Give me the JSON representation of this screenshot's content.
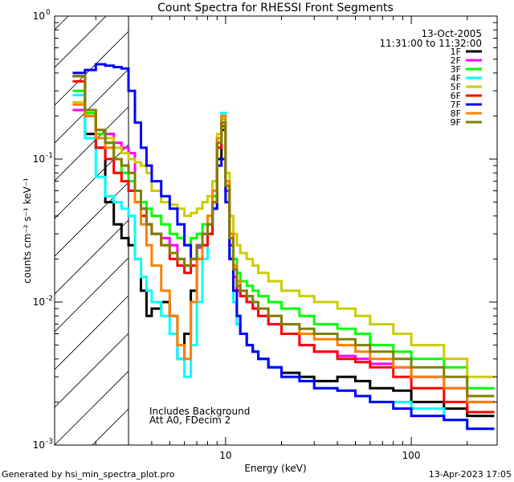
{
  "chart_data": {
    "type": "line",
    "step": true,
    "title": "Count Spectra for RHESSI Front Segments",
    "xlabel": "Energy (keV)",
    "ylabel": "counts cm⁻² s⁻¹ keV⁻¹",
    "xscale": "log",
    "yscale": "log",
    "xlim": [
      1.2,
      290
    ],
    "ylim": [
      0.001,
      1
    ],
    "x_ticks": [
      {
        "v": 10,
        "label": "10"
      },
      {
        "v": 100,
        "label": "100"
      }
    ],
    "y_ticks": [
      {
        "v": 1,
        "base": "10",
        "exp": "0"
      },
      {
        "v": 0.1,
        "base": "10",
        "exp": "-1"
      },
      {
        "v": 0.01,
        "base": "10",
        "exp": "-2"
      },
      {
        "v": 0.001,
        "base": "10",
        "exp": "-3"
      }
    ],
    "date": "13-Oct-2005",
    "time_range": "11:31:00 to 11:32:00",
    "attenuator_boundary_kev": 3.0,
    "annotations": [
      "Includes Background",
      "Att A0, FDecim 2"
    ],
    "energy_edges_kev": [
      1.5,
      1.75,
      2.0,
      2.25,
      2.5,
      2.75,
      3.0,
      3.25,
      3.5,
      3.75,
      4.0,
      4.5,
      5.0,
      5.5,
      6.0,
      6.5,
      7.0,
      7.5,
      8.0,
      8.5,
      9.0,
      9.5,
      10.0,
      10.5,
      11.0,
      11.5,
      12.0,
      13.0,
      14.0,
      15.0,
      17.0,
      20.0,
      25.0,
      30.0,
      40.0,
      50.0,
      60.0,
      80.0,
      100.0,
      150.0,
      200.0,
      280.0
    ],
    "series": [
      {
        "name": "1F",
        "color": "#000000",
        "values": [
          0.38,
          0.15,
          0.12,
          0.05,
          0.035,
          0.028,
          0.025,
          0.02,
          0.012,
          0.008,
          0.009,
          0.01,
          0.008,
          0.004,
          0.006,
          0.012,
          0.02,
          0.025,
          0.03,
          0.045,
          0.1,
          0.16,
          0.05,
          0.02,
          0.01,
          0.007,
          0.006,
          0.005,
          0.0045,
          0.004,
          0.0035,
          0.0032,
          0.003,
          0.0028,
          0.003,
          0.0028,
          0.0025,
          0.0024,
          0.002,
          0.0018,
          0.0016
        ]
      },
      {
        "name": "2F",
        "color": "#ff00ff",
        "values": [
          0.22,
          0.2,
          0.16,
          0.15,
          0.13,
          0.12,
          0.11,
          0.06,
          0.045,
          0.035,
          0.03,
          0.028,
          0.025,
          0.02,
          0.018,
          0.02,
          0.024,
          0.03,
          0.035,
          0.05,
          0.12,
          0.2,
          0.06,
          0.025,
          0.015,
          0.012,
          0.011,
          0.01,
          0.009,
          0.008,
          0.007,
          0.006,
          0.005,
          0.0045,
          0.0042,
          0.004,
          0.0037,
          0.0035,
          0.003,
          0.0025,
          0.002
        ]
      },
      {
        "name": "3F",
        "color": "#00ff00",
        "values": [
          0.3,
          0.21,
          0.15,
          0.13,
          0.1,
          0.08,
          0.07,
          0.06,
          0.05,
          0.045,
          0.04,
          0.035,
          0.03,
          0.028,
          0.025,
          0.028,
          0.03,
          0.035,
          0.04,
          0.055,
          0.13,
          0.19,
          0.07,
          0.03,
          0.02,
          0.016,
          0.014,
          0.013,
          0.012,
          0.011,
          0.01,
          0.009,
          0.008,
          0.007,
          0.0065,
          0.006,
          0.005,
          0.0045,
          0.004,
          0.0035,
          0.0025
        ]
      },
      {
        "name": "4F",
        "color": "#00ffff",
        "values": [
          0.28,
          0.14,
          0.075,
          0.055,
          0.05,
          0.045,
          0.04,
          0.02,
          0.015,
          0.012,
          0.01,
          0.008,
          0.006,
          0.004,
          0.003,
          0.005,
          0.01,
          0.02,
          0.03,
          0.045,
          0.12,
          0.21,
          0.06,
          0.02,
          0.01,
          0.007,
          0.006,
          0.005,
          0.0045,
          0.004,
          0.0035,
          0.003,
          0.0028,
          0.0025,
          0.0024,
          0.0022,
          0.002,
          0.002,
          0.0018,
          0.0015,
          0.0013
        ]
      },
      {
        "name": "5F",
        "color": "#cccc00",
        "values": [
          0.25,
          0.2,
          0.16,
          0.14,
          0.12,
          0.11,
          0.1,
          0.095,
          0.09,
          0.08,
          0.06,
          0.05,
          0.048,
          0.045,
          0.04,
          0.042,
          0.045,
          0.05,
          0.055,
          0.07,
          0.15,
          0.18,
          0.08,
          0.04,
          0.03,
          0.025,
          0.022,
          0.02,
          0.018,
          0.016,
          0.014,
          0.012,
          0.011,
          0.01,
          0.009,
          0.008,
          0.007,
          0.006,
          0.005,
          0.004,
          0.003
        ]
      },
      {
        "name": "6F",
        "color": "#ff0000",
        "values": [
          0.35,
          0.2,
          0.12,
          0.1,
          0.08,
          0.07,
          0.06,
          0.05,
          0.04,
          0.035,
          0.03,
          0.025,
          0.02,
          0.018,
          0.016,
          0.018,
          0.02,
          0.025,
          0.03,
          0.05,
          0.12,
          0.17,
          0.06,
          0.025,
          0.015,
          0.012,
          0.011,
          0.01,
          0.009,
          0.008,
          0.007,
          0.006,
          0.005,
          0.0045,
          0.004,
          0.0038,
          0.0035,
          0.003,
          0.0025,
          0.002,
          0.0017
        ]
      },
      {
        "name": "7F",
        "color": "#0000ff",
        "values": [
          0.4,
          0.42,
          0.46,
          0.45,
          0.44,
          0.43,
          0.3,
          0.18,
          0.12,
          0.09,
          0.07,
          0.055,
          0.045,
          0.035,
          0.025,
          0.02,
          0.025,
          0.03,
          0.035,
          0.045,
          0.09,
          0.1,
          0.05,
          0.02,
          0.012,
          0.008,
          0.006,
          0.005,
          0.0045,
          0.004,
          0.0035,
          0.003,
          0.0028,
          0.0025,
          0.0024,
          0.0022,
          0.002,
          0.0018,
          0.0016,
          0.0015,
          0.0013
        ]
      },
      {
        "name": "8F",
        "color": "#ff8000",
        "values": [
          0.24,
          0.2,
          0.14,
          0.12,
          0.1,
          0.09,
          0.08,
          0.05,
          0.035,
          0.025,
          0.018,
          0.012,
          0.008,
          0.005,
          0.004,
          0.01,
          0.02,
          0.03,
          0.04,
          0.06,
          0.14,
          0.2,
          0.07,
          0.03,
          0.018,
          0.014,
          0.012,
          0.011,
          0.01,
          0.009,
          0.008,
          0.007,
          0.006,
          0.0055,
          0.005,
          0.0045,
          0.004,
          0.0035,
          0.003,
          0.0025,
          0.002
        ]
      },
      {
        "name": "9F",
        "color": "#808000",
        "values": [
          0.38,
          0.22,
          0.16,
          0.13,
          0.1,
          0.09,
          0.08,
          0.06,
          0.045,
          0.035,
          0.03,
          0.025,
          0.022,
          0.02,
          0.018,
          0.02,
          0.025,
          0.03,
          0.035,
          0.05,
          0.13,
          0.18,
          0.065,
          0.028,
          0.017,
          0.013,
          0.012,
          0.011,
          0.01,
          0.009,
          0.008,
          0.007,
          0.0065,
          0.006,
          0.0055,
          0.005,
          0.0045,
          0.004,
          0.0035,
          0.003,
          0.0022
        ]
      }
    ]
  },
  "footer": {
    "generated_by": "Generated by hsi_min_spectra_plot.pro",
    "timestamp": "13-Apr-2023 17:05"
  }
}
